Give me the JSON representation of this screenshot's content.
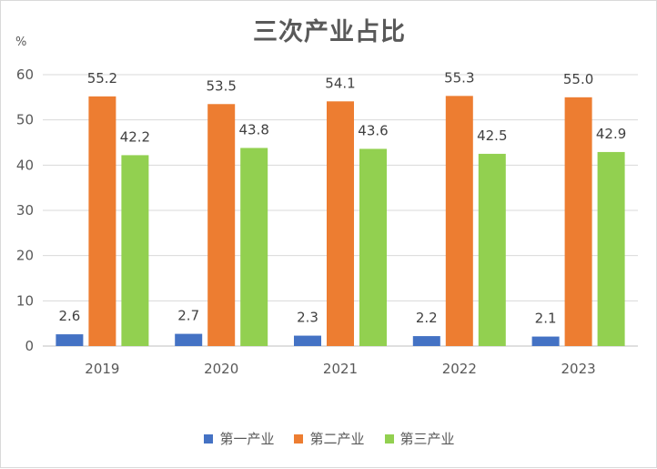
{
  "chart_data": {
    "type": "bar",
    "title": "三次产业占比",
    "unit": "%",
    "categories": [
      "2019",
      "2020",
      "2021",
      "2022",
      "2023"
    ],
    "series": [
      {
        "name": "第一产业",
        "values": [
          2.6,
          2.7,
          2.3,
          2.2,
          2.1
        ],
        "color": "#4472c4"
      },
      {
        "name": "第二产业",
        "values": [
          55.2,
          53.5,
          54.1,
          55.3,
          55.0
        ],
        "color": "#ed7d31"
      },
      {
        "name": "第三产业",
        "values": [
          42.2,
          43.8,
          43.6,
          42.5,
          42.9
        ],
        "color": "#92d050"
      }
    ],
    "yticks": [
      "0",
      "10",
      "20",
      "30",
      "40",
      "50",
      "60"
    ],
    "ylim": [
      0,
      60
    ],
    "grid": true,
    "legend": "bottom"
  }
}
